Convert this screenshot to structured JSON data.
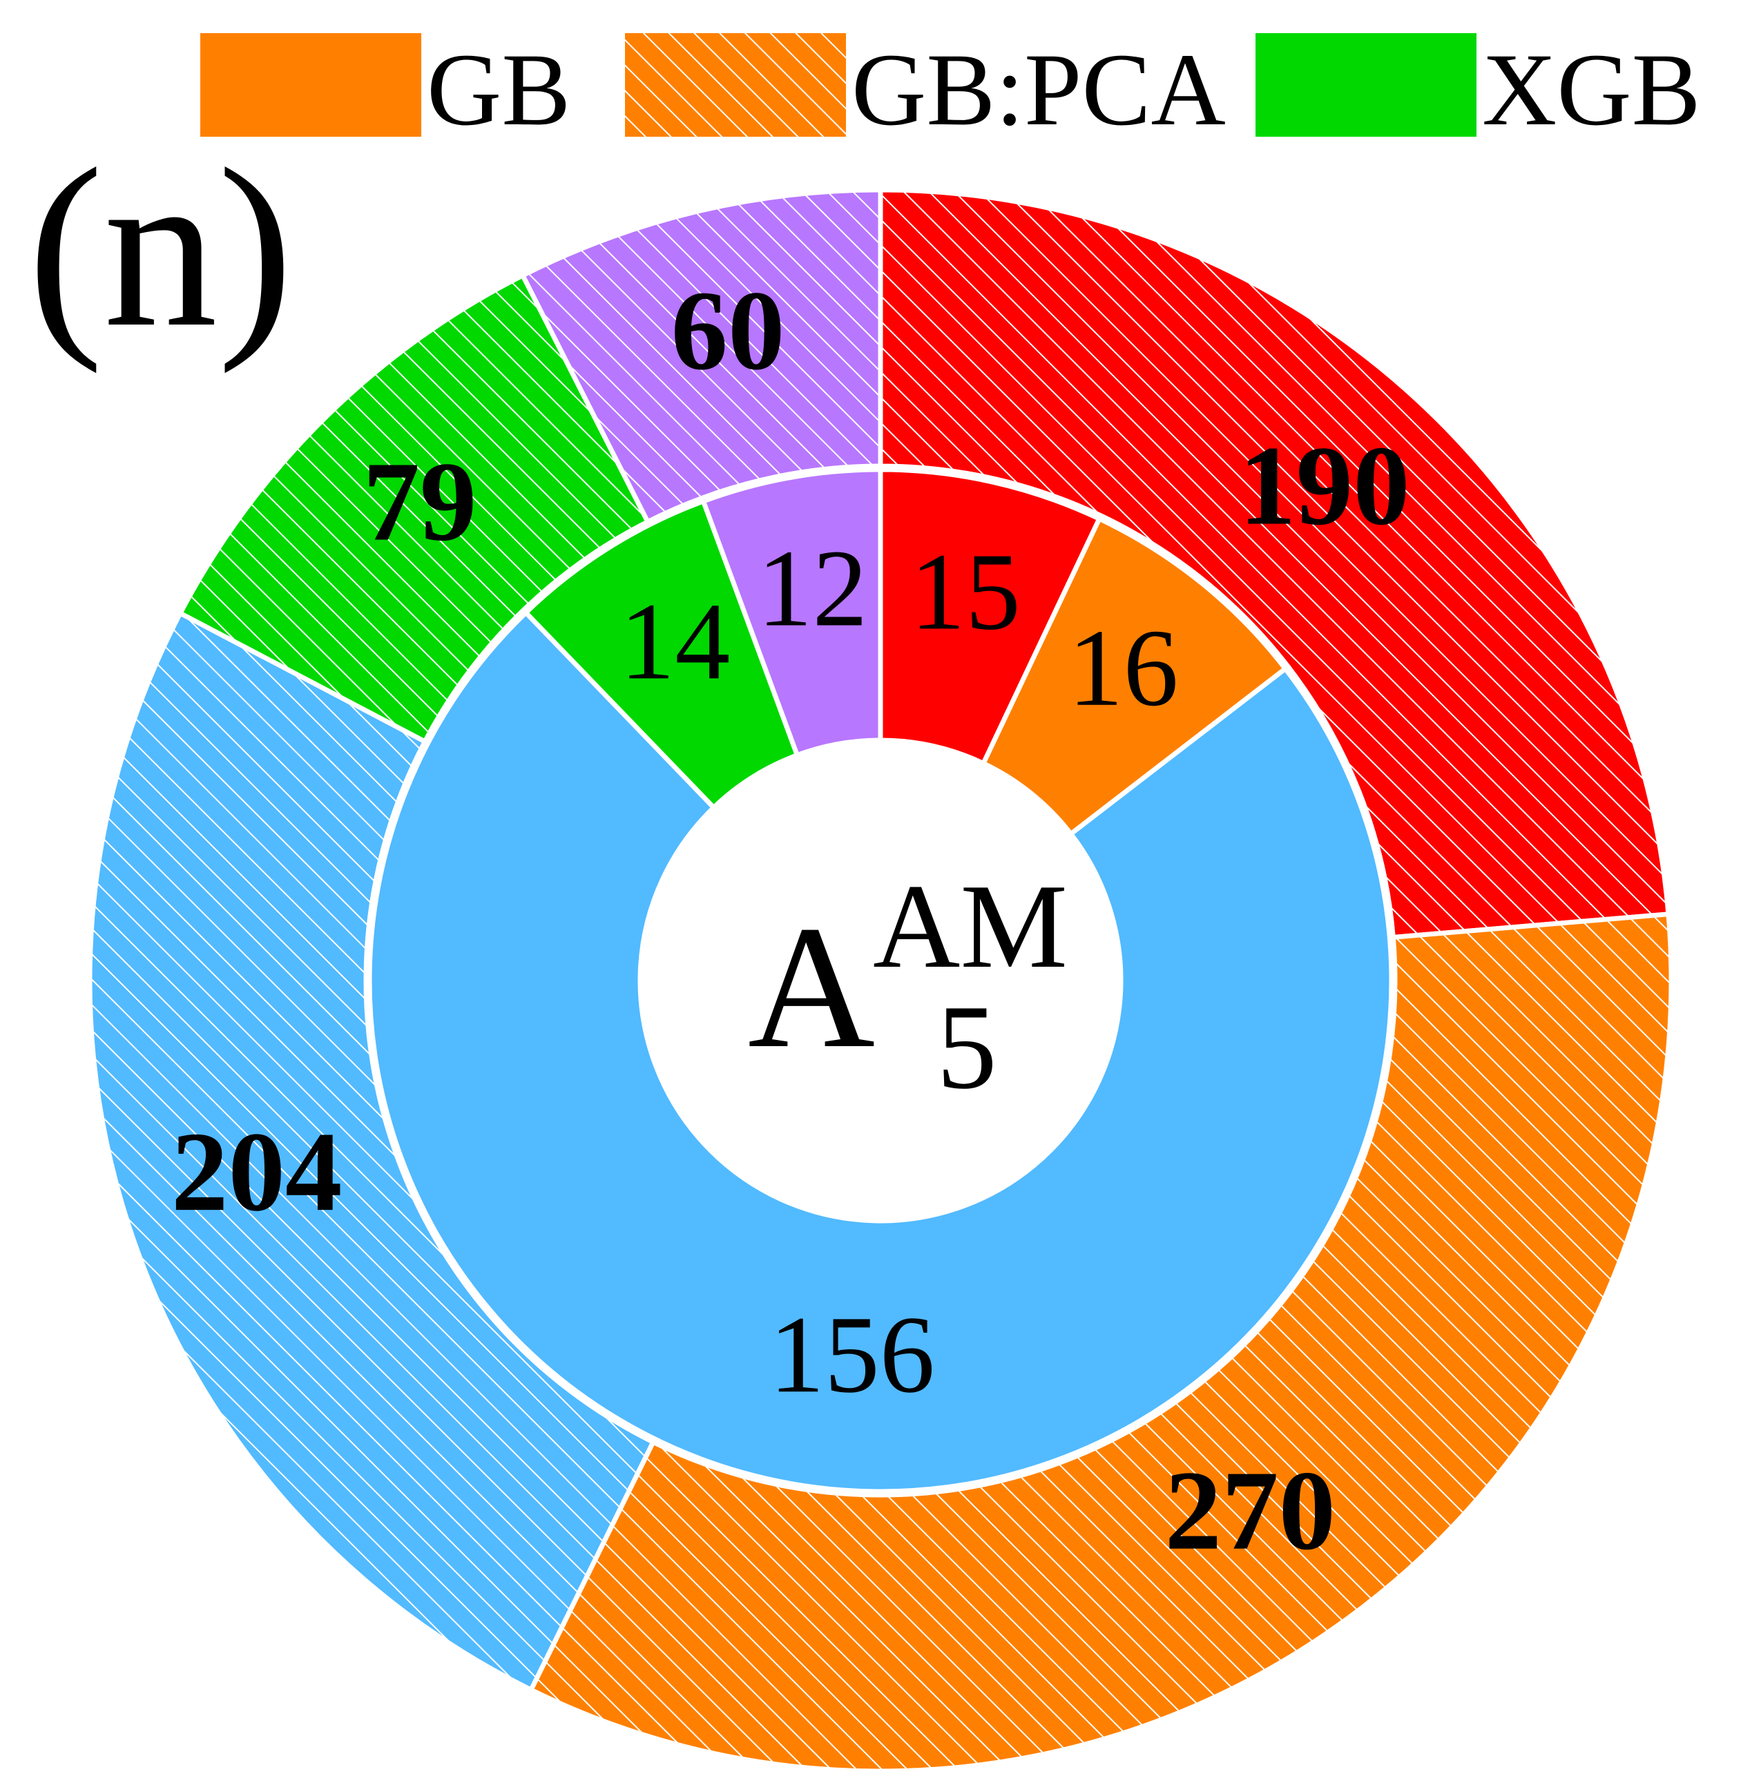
{
  "panel_label": "(n)",
  "center_label": {
    "main": "A",
    "superscript": "AM",
    "subscript": "5"
  },
  "legend": [
    {
      "label": "GB",
      "color": "#FF8000",
      "hatched": false
    },
    {
      "label": "GB:PCA",
      "color": "#FF8000",
      "hatched": true
    },
    {
      "label": "XGB",
      "color": "#00D800",
      "hatched": false
    }
  ],
  "chart_data": {
    "type": "pie",
    "style": "nested donut, clockwise from top",
    "inner_ring": {
      "hatched": false,
      "slices": [
        {
          "value": 15,
          "label": "15",
          "color": "#FF0000"
        },
        {
          "value": 16,
          "label": "16",
          "color": "#FF8000"
        },
        {
          "value": 156,
          "label": "156",
          "color": "#52BAFF"
        },
        {
          "value": 14,
          "label": "14",
          "color": "#00D800"
        },
        {
          "value": 12,
          "label": "12",
          "color": "#B877FF"
        }
      ]
    },
    "outer_ring": {
      "hatched": true,
      "slices": [
        {
          "value": 190,
          "label": "190",
          "color": "#FF0000"
        },
        {
          "value": 270,
          "label": "270",
          "color": "#FF8000"
        },
        {
          "value": 204,
          "label": "204",
          "color": "#52BAFF"
        },
        {
          "value": 79,
          "label": "79",
          "color": "#00D800"
        },
        {
          "value": 60,
          "label": "60",
          "color": "#B877FF"
        }
      ]
    }
  }
}
